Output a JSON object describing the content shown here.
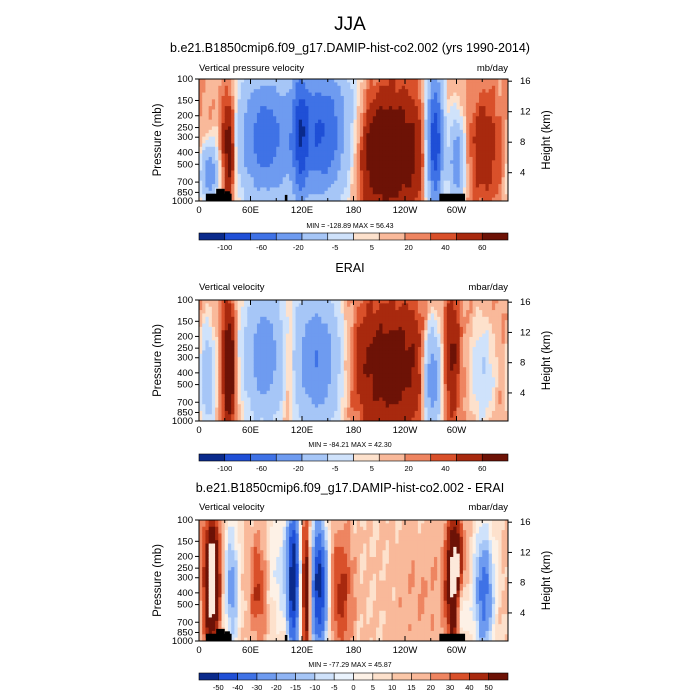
{
  "header": {
    "title": "JJA"
  },
  "palette": {
    "eleven": [
      "#0a2a8c",
      "#1f4fd6",
      "#3f72e6",
      "#6e9bf0",
      "#a6c6f7",
      "#cfe2fb",
      "#fde1cc",
      "#f9b99a",
      "#ee8561",
      "#d9502a",
      "#a8290e",
      "#6d1206"
    ],
    "twelve": [
      "#0a2a8c",
      "#1f4fd6",
      "#3f72e6",
      "#6e9bf0",
      "#a6c6f7",
      "#cfe2fb",
      "#fdf1e6",
      "#fde1cc",
      "#f9b99a",
      "#ee8561",
      "#d9502a",
      "#a8290e",
      "#6d1206"
    ]
  },
  "chart_data": [
    {
      "type": "heatmap",
      "title": "b.e21.B1850cmip6.f09_g17.DAMIP-hist-co2.002 (yrs 1990-2014)",
      "left_label": "Vertical pressure velocity",
      "units": "mb/day",
      "ylabel": "Pressure (mb)",
      "ylabel_right": "Height (km)",
      "x_ticks": [
        "0",
        "60E",
        "120E",
        "180",
        "120W",
        "60W"
      ],
      "y_ticks": [
        "100",
        "150",
        "200",
        "250",
        "300",
        "400",
        "500",
        "700",
        "850",
        "1000"
      ],
      "y_right_ticks": [
        "16",
        "12",
        "8",
        "4"
      ],
      "stats": "MIN = -128.89   MAX = 56.43",
      "colorbar_labels": [
        "-100",
        "-60",
        "-20",
        "-5",
        "5",
        "20",
        "40",
        "60"
      ],
      "levels": [
        -100,
        -80,
        -60,
        -40,
        -20,
        -10,
        -5,
        0,
        5,
        10,
        20,
        30,
        40,
        60
      ],
      "land_mask": true,
      "features": [
        {
          "lon": 12,
          "lev": 0.78,
          "sx": 7,
          "sy": 0.16,
          "amp": -55
        },
        {
          "lon": 35,
          "lev": 0.55,
          "sx": 6,
          "sy": 0.32,
          "amp": 38
        },
        {
          "lon": 75,
          "lev": 0.48,
          "sx": 22,
          "sy": 0.4,
          "amp": -70
        },
        {
          "lon": 118,
          "lev": 0.45,
          "sx": 6,
          "sy": 0.45,
          "amp": -45
        },
        {
          "lon": 145,
          "lev": 0.45,
          "sx": 26,
          "sy": 0.42,
          "amp": -85
        },
        {
          "lon": 215,
          "lev": 0.6,
          "sx": 34,
          "sy": 0.35,
          "amp": 38
        },
        {
          "lon": 275,
          "lev": 0.52,
          "sx": 7,
          "sy": 0.4,
          "amp": -105
        },
        {
          "lon": 300,
          "lev": 0.68,
          "sx": 6,
          "sy": 0.25,
          "amp": -60
        },
        {
          "lon": 333,
          "lev": 0.58,
          "sx": 12,
          "sy": 0.3,
          "amp": 18
        }
      ]
    },
    {
      "type": "heatmap",
      "title": "ERAI",
      "left_label": "Vertical velocity",
      "units": "mbar/day",
      "ylabel": "Pressure (mb)",
      "ylabel_right": "Height (km)",
      "x_ticks": [
        "0",
        "60E",
        "120E",
        "180",
        "120W",
        "60W"
      ],
      "y_ticks": [
        "100",
        "150",
        "200",
        "250",
        "300",
        "400",
        "500",
        "700",
        "850",
        "1000"
      ],
      "y_right_ticks": [
        "16",
        "12",
        "8",
        "4"
      ],
      "stats": "MIN = -84.21   MAX = 42.30",
      "colorbar_labels": [
        "-100",
        "-60",
        "-20",
        "-5",
        "5",
        "20",
        "40",
        "60"
      ],
      "levels": [
        -100,
        -80,
        -60,
        -40,
        -20,
        -10,
        -5,
        0,
        5,
        10,
        20,
        30,
        40,
        60
      ],
      "land_mask": false,
      "features": [
        {
          "lon": 10,
          "lev": 0.65,
          "sx": 6,
          "sy": 0.3,
          "amp": -35
        },
        {
          "lon": 35,
          "lev": 0.55,
          "sx": 5,
          "sy": 0.35,
          "amp": 40
        },
        {
          "lon": 75,
          "lev": 0.45,
          "sx": 16,
          "sy": 0.4,
          "amp": -55
        },
        {
          "lon": 105,
          "lev": 0.55,
          "sx": 5,
          "sy": 0.35,
          "amp": 18
        },
        {
          "lon": 138,
          "lev": 0.5,
          "sx": 20,
          "sy": 0.42,
          "amp": -60
        },
        {
          "lon": 222,
          "lev": 0.55,
          "sx": 34,
          "sy": 0.38,
          "amp": 28
        },
        {
          "lon": 272,
          "lev": 0.65,
          "sx": 7,
          "sy": 0.3,
          "amp": -65
        },
        {
          "lon": 295,
          "lev": 0.45,
          "sx": 6,
          "sy": 0.35,
          "amp": 20
        },
        {
          "lon": 330,
          "lev": 0.6,
          "sx": 10,
          "sy": 0.3,
          "amp": -20
        }
      ]
    },
    {
      "type": "heatmap",
      "title": "b.e21.B1850cmip6.f09_g17.DAMIP-hist-co2.002 - ERAI",
      "left_label": "Vertical velocity",
      "units": "mbar/day",
      "ylabel": "Pressure (mb)",
      "ylabel_right": "Height (km)",
      "x_ticks": [
        "0",
        "60E",
        "120E",
        "180",
        "120W",
        "60W"
      ],
      "y_ticks": [
        "100",
        "150",
        "200",
        "250",
        "300",
        "400",
        "500",
        "700",
        "850",
        "1000"
      ],
      "y_right_ticks": [
        "16",
        "12",
        "8",
        "4"
      ],
      "stats": "MIN = -77.29   MAX = 45.87",
      "colorbar_labels": [
        "-50",
        "-40",
        "-30",
        "-20",
        "-15",
        "-10",
        "-5",
        "0",
        "5",
        "10",
        "15",
        "20",
        "30",
        "40",
        "50"
      ],
      "levels": [
        -50,
        -40,
        -30,
        -20,
        -15,
        -10,
        -5,
        0,
        5,
        10,
        15,
        20,
        30,
        40,
        50
      ],
      "land_mask": true,
      "features": [
        {
          "lon": 15,
          "lev": 0.5,
          "sx": 7,
          "sy": 0.4,
          "amp": 40
        },
        {
          "lon": 38,
          "lev": 0.55,
          "sx": 6,
          "sy": 0.35,
          "amp": -25
        },
        {
          "lon": 70,
          "lev": 0.55,
          "sx": 8,
          "sy": 0.3,
          "amp": 18
        },
        {
          "lon": 95,
          "lev": 0.4,
          "sx": 14,
          "sy": 0.35,
          "amp": -12
        },
        {
          "lon": 110,
          "lev": 0.5,
          "sx": 5,
          "sy": 0.45,
          "amp": -55
        },
        {
          "lon": 125,
          "lev": 0.55,
          "sx": 4,
          "sy": 0.4,
          "amp": 35
        },
        {
          "lon": 140,
          "lev": 0.55,
          "sx": 7,
          "sy": 0.4,
          "amp": -55
        },
        {
          "lon": 165,
          "lev": 0.6,
          "sx": 10,
          "sy": 0.35,
          "amp": 18
        },
        {
          "lon": 260,
          "lev": 0.6,
          "sx": 25,
          "sy": 0.35,
          "amp": 5
        },
        {
          "lon": 298,
          "lev": 0.52,
          "sx": 7,
          "sy": 0.4,
          "amp": 40
        },
        {
          "lon": 305,
          "lev": 0.75,
          "sx": 6,
          "sy": 0.18,
          "amp": -25
        },
        {
          "lon": 332,
          "lev": 0.6,
          "sx": 8,
          "sy": 0.35,
          "amp": -35
        }
      ]
    }
  ]
}
